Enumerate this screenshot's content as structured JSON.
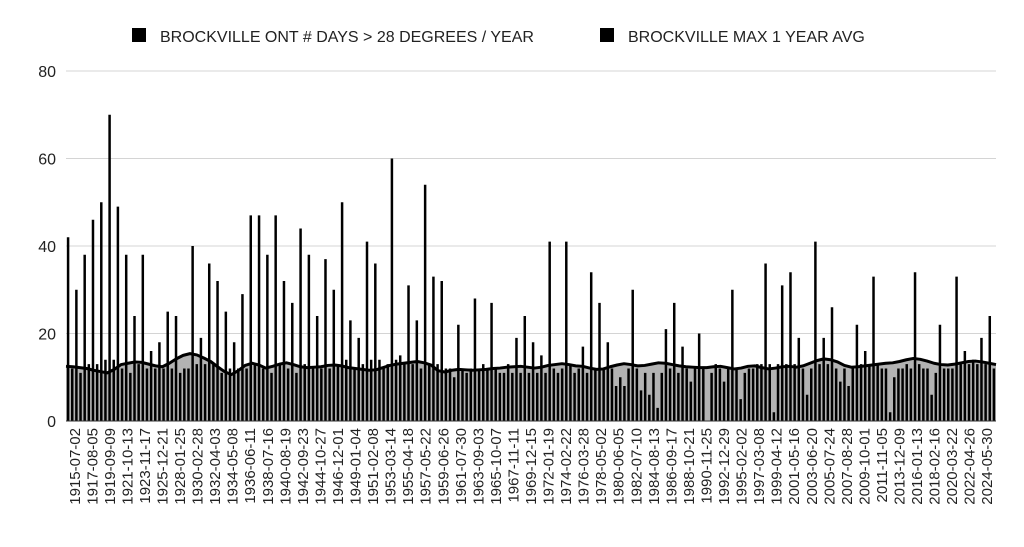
{
  "chart_data": {
    "type": "bar",
    "legend_placement": "top",
    "grid": true,
    "ylim": [
      0,
      80
    ],
    "yticks": [
      0,
      20,
      40,
      60,
      80
    ],
    "series": [
      {
        "name": "BROCKVILLE ONT # DAYS > 28 DEGREES / YEAR",
        "kind": "bar",
        "color": "#000000",
        "values": [
          42,
          12,
          30,
          11,
          38,
          13,
          46,
          13,
          50,
          14,
          70,
          14,
          49,
          12,
          38,
          11,
          24,
          13,
          38,
          12,
          16,
          12,
          18,
          12,
          25,
          12,
          24,
          11,
          12,
          12,
          40,
          13,
          19,
          13,
          36,
          13,
          32,
          11,
          25,
          12,
          18,
          12,
          29,
          12,
          47,
          13,
          47,
          12,
          38,
          11,
          47,
          13,
          32,
          12,
          27,
          11,
          44,
          13,
          38,
          12,
          24,
          12,
          37,
          12,
          30,
          13,
          50,
          14,
          23,
          12,
          19,
          13,
          41,
          14,
          36,
          14,
          12,
          13,
          60,
          14,
          15,
          13,
          31,
          13,
          23,
          12,
          54,
          13,
          33,
          13,
          32,
          12,
          12,
          10,
          22,
          12,
          11,
          12,
          28,
          12,
          13,
          12,
          27,
          12,
          11,
          11,
          13,
          11,
          19,
          11,
          24,
          11,
          18,
          11,
          15,
          11,
          41,
          12,
          11,
          12,
          41,
          13,
          11,
          12,
          17,
          11,
          34,
          12,
          27,
          12,
          18,
          12,
          8,
          10,
          8,
          12,
          30,
          12,
          7,
          11,
          6,
          11,
          3,
          11,
          21,
          12,
          27,
          11,
          17,
          12,
          9,
          12,
          20,
          12,
          0,
          11,
          13,
          12,
          9,
          12,
          30,
          12,
          5,
          11,
          12,
          12,
          13,
          13,
          36,
          13,
          2,
          13,
          31,
          13,
          34,
          13,
          19,
          12,
          6,
          12,
          41,
          13,
          19,
          13,
          26,
          12,
          9,
          12,
          8,
          12,
          22,
          13,
          16,
          13,
          33,
          13,
          12,
          12,
          2,
          10,
          12,
          12,
          13,
          12,
          34,
          13,
          12,
          12,
          6,
          11,
          22,
          12,
          12,
          12,
          33,
          13,
          16,
          13,
          14,
          13,
          19,
          13,
          24,
          12
        ]
      },
      {
        "name": "BROCKVILLE MAX 1 YEAR AVG",
        "kind": "area",
        "color": "#000000",
        "fill": "#b3b3b3",
        "values": [
          12.5,
          12.4,
          12.2,
          12.0,
          11.6,
          11.3,
          11.0,
          11.8,
          12.9,
          13.2,
          13.5,
          13.4,
          13.0,
          12.6,
          12.4,
          13.2,
          14.2,
          15.0,
          15.4,
          15.1,
          14.4,
          13.6,
          12.4,
          11.3,
          10.6,
          11.5,
          12.7,
          13.2,
          12.8,
          12.1,
          12.5,
          13.0,
          13.3,
          12.9,
          12.4,
          12.2,
          12.3,
          12.4,
          12.7,
          12.8,
          12.6,
          12.2,
          12.0,
          11.8,
          11.6,
          11.7,
          12.2,
          12.7,
          13.0,
          13.2,
          13.4,
          13.6,
          13.3,
          12.8,
          11.5,
          11.2,
          11.6,
          11.8,
          11.7,
          11.6,
          11.7,
          11.8,
          12.0,
          12.1,
          12.3,
          12.4,
          12.5,
          12.3,
          12.1,
          12.3,
          12.7,
          12.9,
          13.1,
          12.9,
          12.6,
          12.5,
          12.1,
          11.8,
          11.9,
          12.4,
          12.8,
          13.1,
          12.9,
          12.6,
          12.7,
          13.0,
          13.3,
          13.2,
          12.9,
          12.6,
          12.4,
          12.3,
          12.2,
          12.2,
          12.4,
          12.5,
          12.2,
          11.9,
          12.1,
          12.5,
          12.6,
          12.2,
          11.9,
          12.1,
          12.4,
          12.5,
          12.3,
          12.6,
          13.2,
          13.8,
          14.2,
          14.0,
          13.5,
          12.7,
          12.3,
          12.4,
          12.6,
          12.8,
          13.0,
          13.2,
          13.3,
          13.6,
          14.0,
          14.3,
          14.1,
          13.7,
          13.2,
          12.9,
          12.8,
          13.0,
          13.3,
          13.6,
          13.7,
          13.5,
          13.2,
          12.9
        ]
      }
    ],
    "x_tick_labels": [
      "1915-07-02",
      "1917-08-05",
      "1919-09-09",
      "1921-10-13",
      "1923-11-17",
      "1925-12-21",
      "1928-01-25",
      "1930-02-28",
      "1932-04-03",
      "1934-05-08",
      "1936-06-11",
      "1938-07-16",
      "1940-08-19",
      "1942-09-23",
      "1944-10-27",
      "1946-12-01",
      "1949-01-04",
      "1951-02-08",
      "1953-03-14",
      "1955-04-18",
      "1957-05-22",
      "1959-06-26",
      "1961-07-30",
      "1963-09-03",
      "1965-10-07",
      "1967-11-11",
      "1969-12-15",
      "1972-01-19",
      "1974-02-22",
      "1976-03-28",
      "1978-05-02",
      "1980-06-05",
      "1982-07-10",
      "1984-08-13",
      "1986-09-17",
      "1988-10-21",
      "1990-11-25",
      "1992-12-29",
      "1995-02-02",
      "1997-03-08",
      "1999-04-12",
      "2001-05-16",
      "2003-06-20",
      "2005-07-24",
      "2007-08-28",
      "2009-10-01",
      "2011-11-05",
      "2013-12-09",
      "2016-01-13",
      "2018-02-16",
      "2020-03-22",
      "2022-04-26",
      "2024-05-30"
    ]
  }
}
